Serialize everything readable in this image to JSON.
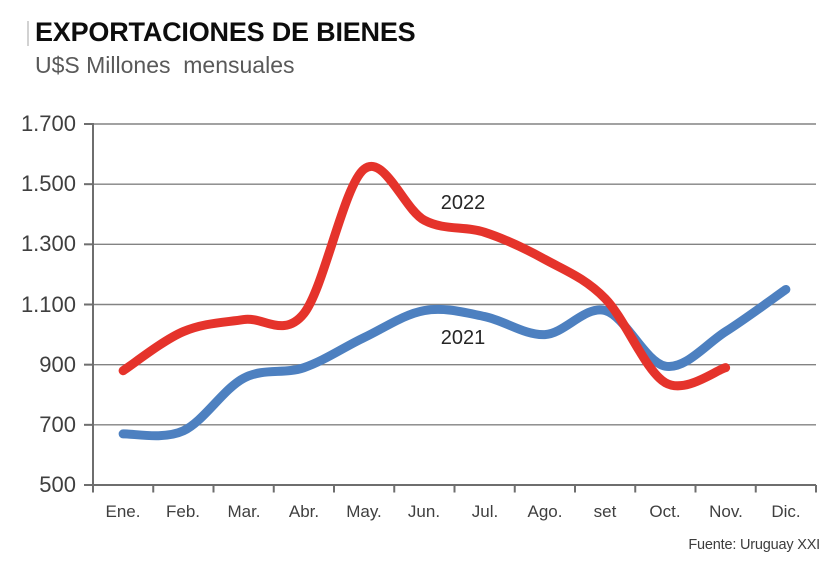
{
  "header": {
    "title": "EXPORTACIONES DE BIENES",
    "subtitle": "U$S Millones  mensuales"
  },
  "source": "Fuente: Uruguay XXI",
  "colors": {
    "grid": "#838383",
    "axis": "#6e6e6e",
    "tick_text": "#3f3f3f",
    "series_2022": "#e5332b",
    "series_2021": "#4d80c0"
  },
  "chart_data": {
    "type": "line",
    "title": "EXPORTACIONES DE BIENES",
    "subtitle": "U$S Millones mensuales",
    "xlabel": "",
    "ylabel": "U$S Millones",
    "x_labels": [
      "Ene.",
      "Feb.",
      "Mar.",
      "Abr.",
      "May.",
      "Jun.",
      "Jul.",
      "Ago.",
      "set",
      "Oct.",
      "Nov.",
      "Dic."
    ],
    "ylim": [
      500,
      1700
    ],
    "y_ticks": [
      500,
      700,
      900,
      1100,
      1300,
      1500,
      1700
    ],
    "y_tick_labels_top_to_bottom": [
      "1.700",
      "1.500",
      "1.300",
      "1.100",
      "900",
      "700",
      "500"
    ],
    "grid": "horizontal",
    "legend_position": "inline-labels-on-lines",
    "line_style": "smooth",
    "series": [
      {
        "name": "2022",
        "color": "#e5332b",
        "values": [
          880,
          1010,
          1050,
          1070,
          1550,
          1380,
          1340,
          1250,
          1120,
          840,
          890,
          null
        ]
      },
      {
        "name": "2021",
        "color": "#4d80c0",
        "values": [
          670,
          680,
          855,
          890,
          990,
          1080,
          1060,
          1000,
          1080,
          895,
          1010,
          1150
        ]
      }
    ],
    "source": "Fuente: Uruguay XXI"
  }
}
